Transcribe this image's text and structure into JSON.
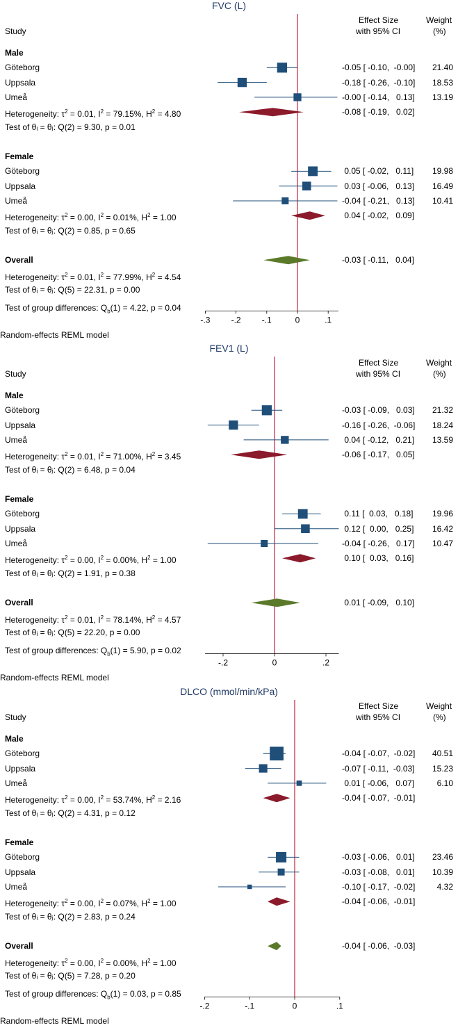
{
  "chart_data": [
    {
      "type": "forest",
      "title": "FVC (L)",
      "headers": {
        "study": "Study",
        "effect": "Effect Size",
        "ci": "with 95% CI",
        "weight": "Weight",
        "weight_unit": "(%)"
      },
      "xticks": [
        -0.3,
        -0.2,
        -0.1,
        0,
        0.1
      ],
      "xtick_labels": [
        "-.3",
        "-.2",
        "-.1",
        "0",
        ".1"
      ],
      "xlim": [
        -0.3,
        0.1
      ],
      "groups": [
        {
          "name": "Male",
          "studies": [
            {
              "label": "Göteborg",
              "est": -0.05,
              "lo": -0.1,
              "hi": 0.0,
              "text": "-0.05 [ -0.10,  -0.00]",
              "weight": 21.4,
              "weight_text": "21.40"
            },
            {
              "label": "Uppsala",
              "est": -0.18,
              "lo": -0.26,
              "hi": -0.1,
              "text": "-0.18 [ -0.26,  -0.10]",
              "weight": 18.53,
              "weight_text": "18.53"
            },
            {
              "label": "Umeå",
              "est": -0.0,
              "lo": -0.14,
              "hi": 0.13,
              "text": "-0.00 [ -0.14,   0.13]",
              "weight": 13.19,
              "weight_text": "13.19"
            }
          ],
          "summary": {
            "label": "Heterogeneity: τ² = 0.01, I² = 79.15%, H² = 4.80",
            "est": -0.08,
            "lo": -0.19,
            "hi": 0.02,
            "text": "-0.08 [ -0.19,   0.02]"
          },
          "test": "Test of θᵢ = θⱼ: Q(2) = 9.30, p = 0.01"
        },
        {
          "name": "Female",
          "studies": [
            {
              "label": "Göteborg",
              "est": 0.05,
              "lo": -0.02,
              "hi": 0.11,
              "text": " 0.05 [ -0.02,   0.11]",
              "weight": 19.98,
              "weight_text": "19.98"
            },
            {
              "label": "Uppsala",
              "est": 0.03,
              "lo": -0.06,
              "hi": 0.13,
              "text": " 0.03 [ -0.06,   0.13]",
              "weight": 16.49,
              "weight_text": "16.49"
            },
            {
              "label": "Umeå",
              "est": -0.04,
              "lo": -0.21,
              "hi": 0.13,
              "text": "-0.04 [ -0.21,   0.13]",
              "weight": 10.41,
              "weight_text": "10.41"
            }
          ],
          "summary": {
            "label": "Heterogeneity: τ² = 0.00, I² = 0.01%, H² = 1.00",
            "est": 0.04,
            "lo": -0.02,
            "hi": 0.09,
            "text": " 0.04 [ -0.02,   0.09]"
          },
          "test": "Test of θᵢ = θⱼ: Q(2) = 0.85, p = 0.65"
        }
      ],
      "overall": {
        "name": "Overall",
        "est": -0.03,
        "lo": -0.11,
        "hi": 0.04,
        "text": "-0.03 [ -0.11,   0.04]",
        "heterogeneity": "Heterogeneity: τ² = 0.01, I² = 77.99%, H² = 4.54",
        "test": "Test of θᵢ = θⱼ: Q(5) = 22.31, p = 0.00"
      },
      "group_test": "Test of group differences: Q_b(1) = 4.22, p = 0.04",
      "model_note": "Random-effects REML model"
    },
    {
      "type": "forest",
      "title": "FEV1 (L)",
      "headers": {
        "study": "Study",
        "effect": "Effect Size",
        "ci": "with 95% CI",
        "weight": "Weight",
        "weight_unit": "(%)"
      },
      "xticks": [
        -0.2,
        0,
        0.2
      ],
      "xtick_labels": [
        "-.2",
        "0",
        ".2"
      ],
      "xlim": [
        -0.27,
        0.25
      ],
      "groups": [
        {
          "name": "Male",
          "studies": [
            {
              "label": "Göteborg",
              "est": -0.03,
              "lo": -0.09,
              "hi": 0.03,
              "text": "-0.03 [ -0.09,   0.03]",
              "weight": 21.32,
              "weight_text": "21.32"
            },
            {
              "label": "Uppsala",
              "est": -0.16,
              "lo": -0.26,
              "hi": -0.06,
              "text": "-0.16 [ -0.26,  -0.06]",
              "weight": 18.24,
              "weight_text": "18.24"
            },
            {
              "label": "Umeå",
              "est": 0.04,
              "lo": -0.12,
              "hi": 0.21,
              "text": " 0.04 [ -0.12,   0.21]",
              "weight": 13.59,
              "weight_text": "13.59"
            }
          ],
          "summary": {
            "label": "Heterogeneity: τ² = 0.01, I² = 71.00%, H² = 3.45",
            "est": -0.06,
            "lo": -0.17,
            "hi": 0.05,
            "text": "-0.06 [ -0.17,   0.05]"
          },
          "test": "Test of θᵢ = θⱼ: Q(2) = 6.48, p = 0.04"
        },
        {
          "name": "Female",
          "studies": [
            {
              "label": "Göteborg",
              "est": 0.11,
              "lo": 0.03,
              "hi": 0.18,
              "text": " 0.11 [  0.03,   0.18]",
              "weight": 19.96,
              "weight_text": "19.96"
            },
            {
              "label": "Uppsala",
              "est": 0.12,
              "lo": 0.0,
              "hi": 0.25,
              "text": " 0.12 [  0.00,   0.25]",
              "weight": 16.42,
              "weight_text": "16.42"
            },
            {
              "label": "Umeå",
              "est": -0.04,
              "lo": -0.26,
              "hi": 0.17,
              "text": "-0.04 [ -0.26,   0.17]",
              "weight": 10.47,
              "weight_text": "10.47"
            }
          ],
          "summary": {
            "label": "Heterogeneity: τ² = 0.00, I² = 0.00%, H² = 1.00",
            "est": 0.1,
            "lo": 0.03,
            "hi": 0.16,
            "text": " 0.10 [  0.03,   0.16]"
          },
          "test": "Test of θᵢ = θⱼ: Q(2) = 1.91, p = 0.38"
        }
      ],
      "overall": {
        "name": "Overall",
        "est": 0.01,
        "lo": -0.09,
        "hi": 0.1,
        "text": " 0.01 [ -0.09,   0.10]",
        "heterogeneity": "Heterogeneity: τ² = 0.01, I² = 78.14%, H² = 4.57",
        "test": "Test of θᵢ = θⱼ: Q(5) = 22.20, p = 0.00"
      },
      "group_test": "Test of group differences: Q_b(1) = 5.90, p = 0.02",
      "model_note": "Random-effects REML model"
    },
    {
      "type": "forest",
      "title": "DLCO (mmol/min/kPa)",
      "headers": {
        "study": "Study",
        "effect": "Effect Size",
        "ci": "with 95% CI",
        "weight": "Weight",
        "weight_unit": "(%)"
      },
      "xticks": [
        -0.2,
        -0.1,
        0,
        0.1
      ],
      "xtick_labels": [
        "-.2",
        "-.1",
        "0",
        ".1"
      ],
      "xlim": [
        -0.2,
        0.1
      ],
      "groups": [
        {
          "name": "Male",
          "studies": [
            {
              "label": "Göteborg",
              "est": -0.04,
              "lo": -0.07,
              "hi": -0.02,
              "text": "-0.04 [ -0.07,  -0.02]",
              "weight": 40.51,
              "weight_text": "40.51"
            },
            {
              "label": "Uppsala",
              "est": -0.07,
              "lo": -0.11,
              "hi": -0.03,
              "text": "-0.07 [ -0.11,  -0.03]",
              "weight": 15.23,
              "weight_text": "15.23"
            },
            {
              "label": "Umeå",
              "est": 0.01,
              "lo": -0.06,
              "hi": 0.07,
              "text": " 0.01 [ -0.06,   0.07]",
              "weight": 6.1,
              "weight_text": "6.10"
            }
          ],
          "summary": {
            "label": "Heterogeneity: τ² = 0.00, I² = 53.74%, H² = 2.16",
            "est": -0.04,
            "lo": -0.07,
            "hi": -0.01,
            "text": "-0.04 [ -0.07,  -0.01]"
          },
          "test": "Test of θᵢ = θⱼ: Q(2) = 4.31, p = 0.12"
        },
        {
          "name": "Female",
          "studies": [
            {
              "label": "Göteborg",
              "est": -0.03,
              "lo": -0.06,
              "hi": 0.01,
              "text": "-0.03 [ -0.06,   0.01]",
              "weight": 23.46,
              "weight_text": "23.46"
            },
            {
              "label": "Uppsala",
              "est": -0.03,
              "lo": -0.08,
              "hi": 0.01,
              "text": "-0.03 [ -0.08,   0.01]",
              "weight": 10.39,
              "weight_text": "10.39"
            },
            {
              "label": "Umeå",
              "est": -0.1,
              "lo": -0.17,
              "hi": -0.02,
              "text": "-0.10 [ -0.17,  -0.02]",
              "weight": 4.32,
              "weight_text": "4.32"
            }
          ],
          "summary": {
            "label": "Heterogeneity: τ² = 0.00, I² = 0.07%, H² = 1.00",
            "est": -0.04,
            "lo": -0.06,
            "hi": -0.01,
            "text": "-0.04 [ -0.06,  -0.01]"
          },
          "test": "Test of θᵢ = θⱼ: Q(2) = 2.83, p = 0.24"
        }
      ],
      "overall": {
        "name": "Overall",
        "est": -0.04,
        "lo": -0.06,
        "hi": -0.03,
        "text": "-0.04 [ -0.06,  -0.03]",
        "heterogeneity": "Heterogeneity: τ² = 0.00, I² = 0.00%, H² = 1.00",
        "test": "Test of θᵢ = θⱼ: Q(5) = 7.28, p = 0.20"
      },
      "group_test": "Test of group differences: Q_b(1) = 0.03, p = 0.85",
      "model_note": "Random-effects REML model"
    }
  ],
  "colors": {
    "study_marker": "#1f4e79",
    "ci_line": "#1f4e79",
    "group_diamond": "#8b1a2b",
    "overall_diamond": "#5a7a2a",
    "null_line": "#c0233f",
    "title": "#1f3a66"
  }
}
